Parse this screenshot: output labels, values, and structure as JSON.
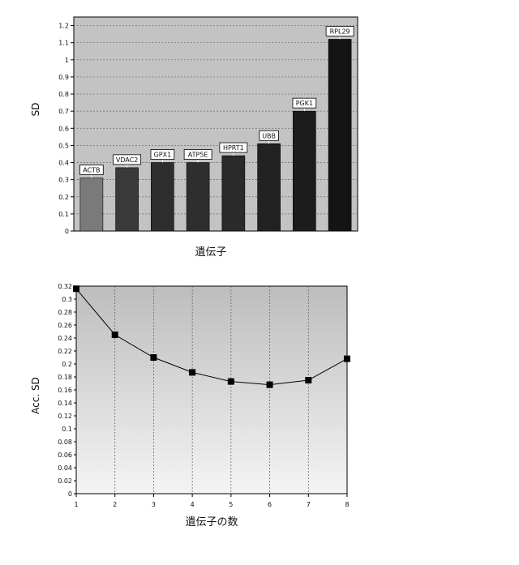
{
  "chart_data": [
    {
      "type": "bar",
      "categories": [
        "ACTB",
        "VDAC2",
        "GPX1",
        "ATP5E",
        "HPRT1",
        "UBB",
        "PGK1",
        "RPL29"
      ],
      "values": [
        0.31,
        0.37,
        0.4,
        0.4,
        0.44,
        0.51,
        0.7,
        1.12
      ],
      "xlabel": "遺伝子",
      "ylabel": "SD",
      "ylim": [
        0,
        1.25
      ],
      "yticks": [
        "0",
        "0.1",
        "0.2",
        "0.3",
        "0.4",
        "0.5",
        "0.6",
        "0.7",
        "0.8",
        "0.9",
        "1",
        "1.1",
        "1.2"
      ],
      "grid": true,
      "bar_colors": [
        "#7a7a7a",
        "#3a3a3a",
        "#2e2e2e",
        "#2e2e2e",
        "#2a2a2a",
        "#222222",
        "#1c1c1c",
        "#141414"
      ]
    },
    {
      "type": "line",
      "x": [
        1,
        2,
        3,
        4,
        5,
        6,
        7,
        8
      ],
      "values": [
        0.316,
        0.245,
        0.21,
        0.187,
        0.173,
        0.168,
        0.175,
        0.208
      ],
      "xlabel": "遺伝子の数",
      "ylabel": "Acc. SD",
      "xlim": [
        1,
        8
      ],
      "ylim": [
        0,
        0.32
      ],
      "yticks": [
        "0",
        "0.02",
        "0.04",
        "0.06",
        "0.08",
        "0.1",
        "0.12",
        "0.14",
        "0.16",
        "0.18",
        "0.2",
        "0.22",
        "0.24",
        "0.26",
        "0.28",
        "0.3",
        "0.32"
      ],
      "xticks": [
        "1",
        "2",
        "3",
        "4",
        "5",
        "6",
        "7",
        "8"
      ],
      "grid": true
    }
  ]
}
